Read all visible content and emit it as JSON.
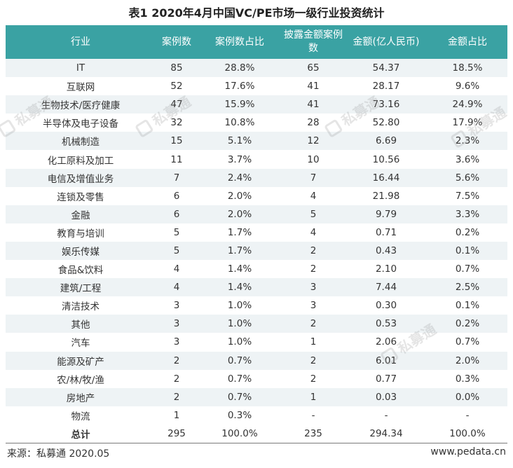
{
  "title": "表1  2020年4月中国VC/PE市场一级行业投资统计",
  "headers": [
    "行业",
    "案例数",
    "案例数占比",
    "披露金额案例数",
    "金额(亿人民币)",
    "金额占比"
  ],
  "rows": [
    [
      "IT",
      "85",
      "28.8%",
      "65",
      "54.37",
      "18.5%"
    ],
    [
      "互联网",
      "52",
      "17.6%",
      "41",
      "28.17",
      "9.6%"
    ],
    [
      "生物技术/医疗健康",
      "47",
      "15.9%",
      "41",
      "73.16",
      "24.9%"
    ],
    [
      "半导体及电子设备",
      "32",
      "10.8%",
      "28",
      "52.80",
      "17.9%"
    ],
    [
      "机械制造",
      "15",
      "5.1%",
      "12",
      "6.69",
      "2.3%"
    ],
    [
      "化工原料及加工",
      "11",
      "3.7%",
      "10",
      "10.56",
      "3.6%"
    ],
    [
      "电信及增值业务",
      "7",
      "2.4%",
      "7",
      "16.44",
      "5.6%"
    ],
    [
      "连锁及零售",
      "6",
      "2.0%",
      "4",
      "21.98",
      "7.5%"
    ],
    [
      "金融",
      "6",
      "2.0%",
      "5",
      "9.79",
      "3.3%"
    ],
    [
      "教育与培训",
      "5",
      "1.7%",
      "4",
      "0.71",
      "0.2%"
    ],
    [
      "娱乐传媒",
      "5",
      "1.7%",
      "2",
      "0.43",
      "0.1%"
    ],
    [
      "食品&饮料",
      "4",
      "1.4%",
      "2",
      "2.10",
      "0.7%"
    ],
    [
      "建筑/工程",
      "4",
      "1.4%",
      "3",
      "7.44",
      "2.5%"
    ],
    [
      "清洁技术",
      "3",
      "1.0%",
      "3",
      "0.30",
      "0.1%"
    ],
    [
      "其他",
      "3",
      "1.0%",
      "2",
      "0.53",
      "0.2%"
    ],
    [
      "汽车",
      "3",
      "1.0%",
      "1",
      "2.06",
      "0.7%"
    ],
    [
      "能源及矿产",
      "2",
      "0.7%",
      "2",
      "6.01",
      "2.0%"
    ],
    [
      "农/林/牧/渔",
      "2",
      "0.7%",
      "2",
      "0.77",
      "0.3%"
    ],
    [
      "房地产",
      "2",
      "0.7%",
      "1",
      "0.03",
      "0.0%"
    ],
    [
      "物流",
      "1",
      "0.3%",
      "-",
      "-",
      "-"
    ]
  ],
  "total": [
    "总计",
    "295",
    "100.0%",
    "235",
    "294.34",
    "100.0%"
  ],
  "source": "来源：私募通 2020.05",
  "site": "www.pedata.cn",
  "watermark": "私募通",
  "colors": {
    "header_bg": "#3aa2a3",
    "stripe": "#eef3f5"
  }
}
